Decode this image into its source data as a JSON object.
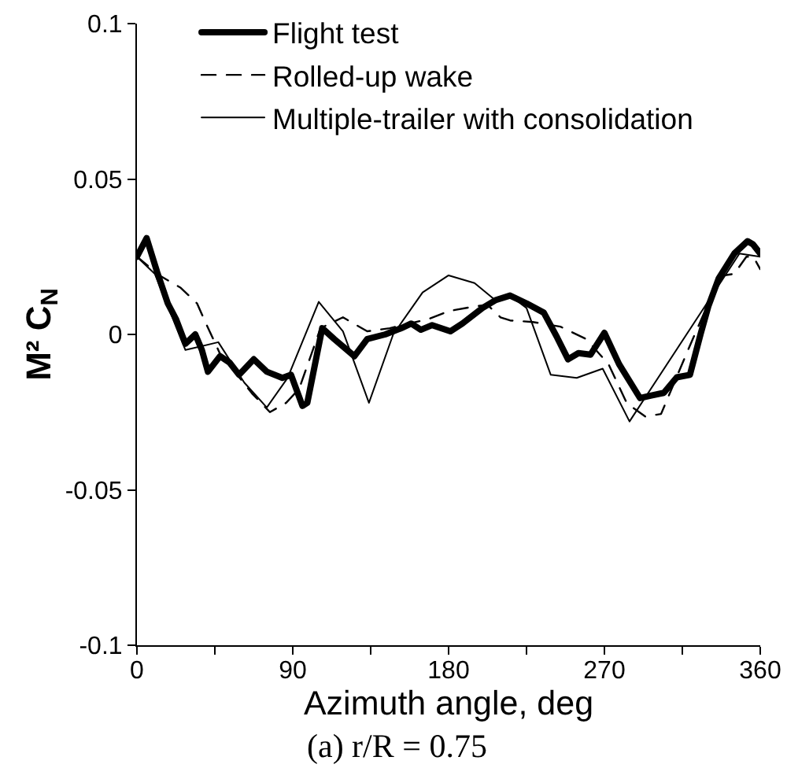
{
  "chart_data": {
    "type": "line",
    "xlabel": "Azimuth angle, deg",
    "ylabel": "M² C$_{N}$",
    "annotations": [
      "(a) r/R = 0.75"
    ],
    "xlim": [
      0,
      360
    ],
    "xticks": [
      0,
      {
        "value": 45,
        "label": null
      },
      90,
      {
        "value": 135,
        "label": null
      },
      180,
      {
        "value": 225,
        "label": null
      },
      270,
      {
        "value": 315,
        "label": null
      },
      360
    ],
    "ylim": [
      -0.1,
      0.1
    ],
    "yticks": [
      -0.1,
      -0.05,
      0,
      0.05,
      0.1
    ],
    "grid": false,
    "legend": "top left",
    "series": [
      {
        "name": "Flight test",
        "color": "#000000",
        "line_style": "solid",
        "x": [
          0,
          5.6,
          11.7,
          17.8,
          22.5,
          28,
          33.7,
          37.5,
          41,
          48,
          53.4,
          59,
          67.5,
          75,
          84,
          89,
          95.6,
          98.4,
          107,
          114,
          125.6,
          133,
          143.4,
          152.7,
          158.4,
          164,
          170.5,
          181,
          188,
          199.6,
          207,
          215.5,
          225,
          235,
          242.7,
          249,
          255,
          262,
          270,
          278.5,
          290.6,
          296.6,
          304.3,
          311.8,
          319.4,
          325.5,
          330,
          336,
          345,
          352.7,
          355.8,
          360
        ],
        "values": [
          0.025,
          0.031,
          0.02,
          0.01,
          0.005,
          -0.003,
          0,
          -0.005,
          -0.012,
          -0.007,
          -0.009,
          -0.013,
          -0.008,
          -0.012,
          -0.014,
          -0.013,
          -0.023,
          -0.022,
          0.002,
          -0.0015,
          -0.007,
          -0.0015,
          0,
          0.002,
          0.0035,
          0.0015,
          0.003,
          0.001,
          0.0035,
          0.0085,
          0.011,
          0.0125,
          0.01,
          0.007,
          -0.001,
          -0.008,
          -0.006,
          -0.0065,
          0.0005,
          -0.0096,
          -0.0205,
          -0.0197,
          -0.0188,
          -0.0138,
          -0.013,
          0,
          0.009,
          0.018,
          0.026,
          0.03,
          0.029,
          0.026
        ]
      },
      {
        "name": "Rolled-up wake",
        "color": "#000000",
        "line_style": "dashed",
        "x": [
          0,
          13,
          25.3,
          34.7,
          40.3,
          47.8,
          57.2,
          66.5,
          76.8,
          86.2,
          93.7,
          106,
          119,
          133,
          146,
          168.7,
          180,
          195,
          202.4,
          210,
          215.5,
          228.6,
          244.6,
          259.5,
          272.4,
          283,
          293.6,
          302.7,
          318,
          328.5,
          339,
          345,
          352,
          356,
          360
        ],
        "values": [
          0.025,
          0.019,
          0.015,
          0.01,
          0.003,
          -0.006,
          -0.0125,
          -0.019,
          -0.025,
          -0.022,
          -0.0175,
          0.002,
          0.0055,
          0.001,
          0.002,
          0.005,
          0.0075,
          0.009,
          0.0095,
          0.0055,
          0.0045,
          0.004,
          0.0025,
          -0.0015,
          -0.0096,
          -0.0222,
          -0.0264,
          -0.0256,
          -0.0054,
          0.0081,
          0.019,
          0.0195,
          0.025,
          0.025,
          0.021
        ]
      },
      {
        "name": "Multiple-trailer with consolidation",
        "color": "#000000",
        "line_style": "solid",
        "x": [
          0,
          10.3,
          28,
          47,
          62,
          75,
          87,
          105,
          119,
          134,
          148,
          165,
          180,
          195,
          207,
          215.5,
          225,
          239,
          254,
          269,
          284.5,
          348,
          360
        ],
        "values": [
          0.025,
          0.0195,
          -0.005,
          -0.0025,
          -0.0155,
          -0.0235,
          -0.014,
          0.0105,
          0.001,
          -0.022,
          0,
          0.0135,
          0.019,
          0.0165,
          0.011,
          0.0125,
          0.0085,
          -0.013,
          -0.014,
          -0.011,
          -0.028,
          0.026,
          0.025
        ]
      }
    ]
  }
}
